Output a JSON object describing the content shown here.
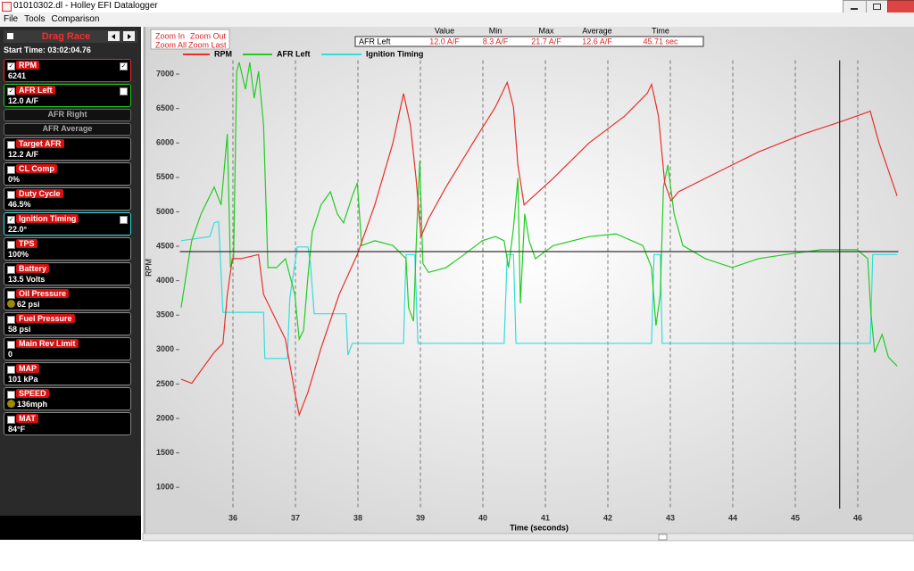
{
  "window": {
    "title": "01010302.dl - Holley EFI Datalogger"
  },
  "menu": [
    "File",
    "Tools",
    "Comparison"
  ],
  "sidebar": {
    "title": "Drag Race",
    "start_time": "Start Time: 03:02:04.76",
    "channels": [
      {
        "name": "RPM",
        "value": "6241",
        "checked": true,
        "axis_checked": true,
        "color": "#e8302a"
      },
      {
        "name": "AFR Left",
        "value": "12.0 A/F",
        "checked": true,
        "axis_checked": false,
        "color": "#22cc22"
      },
      {
        "name": "AFR Right",
        "enabled": false
      },
      {
        "name": "AFR Average",
        "enabled": false
      },
      {
        "name": "Target AFR",
        "value": "12.2 A/F",
        "checked": false
      },
      {
        "name": "CL Comp",
        "value": "0%",
        "checked": false
      },
      {
        "name": "Duty Cycle",
        "value": "46.5%",
        "checked": false
      },
      {
        "name": "Ignition Timing",
        "value": "22.0°",
        "checked": true,
        "axis_checked": false,
        "color": "#33dddd"
      },
      {
        "name": "TPS",
        "value": "100%",
        "checked": false
      },
      {
        "name": "Battery",
        "value": "13.5 Volts",
        "checked": false
      },
      {
        "name": "Oil Pressure",
        "value": "62 psi",
        "checked": false,
        "indicator": true
      },
      {
        "name": "Fuel Pressure",
        "value": "58 psi",
        "checked": false
      },
      {
        "name": "Main Rev Limit",
        "value": "0",
        "checked": false
      },
      {
        "name": "MAP",
        "value": "101 kPa",
        "checked": false
      },
      {
        "name": "SPEED",
        "value": "136mph",
        "checked": false,
        "indicator": true
      },
      {
        "name": "MAT",
        "value": "84°F",
        "checked": false
      }
    ]
  },
  "toolbar": {
    "buttons": [
      "Zoom In",
      "Zoom Out",
      "Zoom All",
      "Zoom Last"
    ]
  },
  "stats": {
    "headers": [
      "Value",
      "Min",
      "Max",
      "Average",
      "Time"
    ],
    "row": [
      "AFR Left",
      "12.0 A/F",
      "8.3 A/F",
      "21.7 A/F",
      "12.6 A/F",
      "45.71 sec"
    ]
  },
  "chart_data": {
    "type": "line",
    "ylabel": "RPM",
    "xlabel": "Time (seconds)",
    "xlim": [
      35.15,
      46.65
    ],
    "xticks": [
      36,
      37,
      38,
      39,
      40,
      41,
      42,
      43,
      44,
      45,
      46
    ],
    "ylim": [
      690,
      7200
    ],
    "yticks": [
      1000,
      1500,
      2000,
      2500,
      3000,
      3500,
      4000,
      4500,
      5000,
      5500,
      6000,
      6500,
      7000
    ],
    "grid": true,
    "cursor_x": 45.71,
    "reference_y": 4422,
    "series": [
      {
        "name": "RPM",
        "color": "#e8302a",
        "x": [
          35.17,
          35.34,
          35.7,
          35.84,
          35.91,
          35.99,
          36.13,
          36.41,
          36.49,
          36.7,
          36.84,
          36.99,
          37.06,
          37.2,
          37.41,
          37.7,
          37.99,
          38.27,
          38.56,
          38.73,
          38.84,
          38.93,
          39.01,
          39.13,
          39.41,
          39.84,
          40.2,
          40.39,
          40.49,
          40.56,
          40.66,
          40.73,
          41.13,
          41.7,
          42.27,
          42.63,
          42.7,
          42.81,
          42.91,
          43.01,
          43.13,
          43.7,
          44.41,
          45.13,
          45.7,
          46.2,
          46.34,
          46.63
        ],
        "values": [
          2570,
          2510,
          2960,
          3090,
          3800,
          4320,
          4320,
          4380,
          3800,
          3410,
          3150,
          2380,
          2050,
          2380,
          3020,
          3800,
          4380,
          5100,
          6000,
          6720,
          6260,
          5490,
          4640,
          4900,
          5360,
          6000,
          6520,
          6880,
          6520,
          5680,
          5100,
          5160,
          5490,
          6000,
          6390,
          6720,
          6850,
          6390,
          5420,
          5160,
          5290,
          5550,
          5870,
          6130,
          6300,
          6460,
          6000,
          5230
        ]
      },
      {
        "name": "AFR Left",
        "color": "#22cc22",
        "x": [
          35.17,
          35.27,
          35.34,
          35.49,
          35.7,
          35.81,
          35.91,
          35.96,
          36.01,
          36.06,
          36.1,
          36.2,
          36.27,
          36.34,
          36.41,
          36.49,
          36.56,
          36.7,
          36.84,
          36.99,
          37.06,
          37.13,
          37.2,
          37.27,
          37.41,
          37.56,
          37.67,
          37.77,
          37.91,
          37.99,
          38.06,
          38.27,
          38.56,
          38.77,
          38.81,
          38.89,
          38.94,
          38.99,
          39.04,
          39.13,
          39.41,
          39.7,
          39.99,
          40.2,
          40.34,
          40.41,
          40.49,
          40.56,
          40.6,
          40.67,
          40.74,
          40.84,
          41.13,
          41.7,
          42.13,
          42.56,
          42.7,
          42.77,
          42.84,
          42.89,
          42.96,
          43.06,
          43.2,
          43.56,
          43.99,
          44.41,
          44.84,
          45.41,
          45.99,
          46.16,
          46.21,
          46.27,
          46.39,
          46.49,
          46.63
        ],
        "values": [
          3610,
          4190,
          4580,
          4970,
          5360,
          5100,
          6130,
          4190,
          4320,
          7040,
          7170,
          6780,
          7170,
          6650,
          7040,
          6260,
          4190,
          4190,
          4320,
          3800,
          3150,
          3280,
          4060,
          4710,
          5100,
          5290,
          4970,
          4840,
          5230,
          5420,
          4510,
          4580,
          4510,
          4320,
          3610,
          3410,
          4710,
          5740,
          4250,
          4120,
          4190,
          4380,
          4580,
          4640,
          4580,
          4190,
          4770,
          5490,
          3670,
          4970,
          4580,
          4320,
          4510,
          4640,
          4680,
          4510,
          4190,
          3350,
          3800,
          5360,
          5680,
          4970,
          4510,
          4320,
          4190,
          4320,
          4380,
          4450,
          4450,
          4320,
          3540,
          2960,
          3220,
          2890,
          2760
        ]
      },
      {
        "name": "Ignition Timing",
        "color": "#33dddd",
        "x": [
          35.17,
          35.63,
          35.7,
          35.77,
          35.84,
          36.49,
          36.51,
          36.87,
          36.91,
          37.03,
          37.2,
          37.24,
          37.3,
          37.81,
          37.84,
          37.91,
          38.73,
          38.77,
          38.91,
          38.96,
          40.34,
          40.39,
          40.49,
          40.53,
          42.7,
          42.74,
          42.84,
          42.87,
          46.2,
          46.24,
          46.63
        ],
        "values": [
          4580,
          4640,
          4840,
          4860,
          3540,
          3540,
          2870,
          2870,
          3740,
          4490,
          4490,
          4250,
          3520,
          3520,
          2920,
          3090,
          3090,
          4380,
          4380,
          3090,
          3090,
          4380,
          4380,
          3090,
          3090,
          4380,
          4380,
          3090,
          3090,
          4380,
          4380
        ]
      }
    ]
  }
}
